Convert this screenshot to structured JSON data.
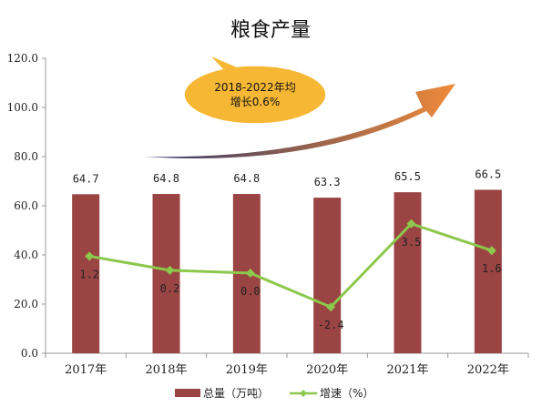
{
  "chart_data": {
    "type": "bar",
    "title": "粮食产量",
    "categories": [
      "2017年",
      "2018年",
      "2019年",
      "2020年",
      "2021年",
      "2022年"
    ],
    "y_ticks": [
      "0.0",
      "20.0",
      "40.0",
      "60.0",
      "80.0",
      "100.0",
      "120.0"
    ],
    "ylim": [
      0,
      120
    ],
    "grid": false,
    "legend_position": "bottom",
    "series": [
      {
        "name": "总量（万吨）",
        "type": "bar",
        "color": "#9b4444",
        "values": [
          64.7,
          64.8,
          64.8,
          63.3,
          65.5,
          66.5
        ],
        "labels": [
          "64.7",
          "64.8",
          "64.8",
          "63.3",
          "65.5",
          "66.5"
        ]
      },
      {
        "name": "增速（%）",
        "type": "line",
        "color": "#8cc84b",
        "marker": "diamond",
        "values": [
          1.2,
          0.2,
          0.0,
          -2.4,
          3.5,
          1.6
        ],
        "labels": [
          "1.2",
          "0.2",
          "0.0",
          "-2.4",
          "3.5",
          "1.6"
        ]
      }
    ],
    "annotation": {
      "line1": "2018-2022年均",
      "line2": "增长0.6%",
      "fill": "#f6b834",
      "arrow_colors": [
        "#2e3566",
        "#f08a3a"
      ]
    }
  }
}
